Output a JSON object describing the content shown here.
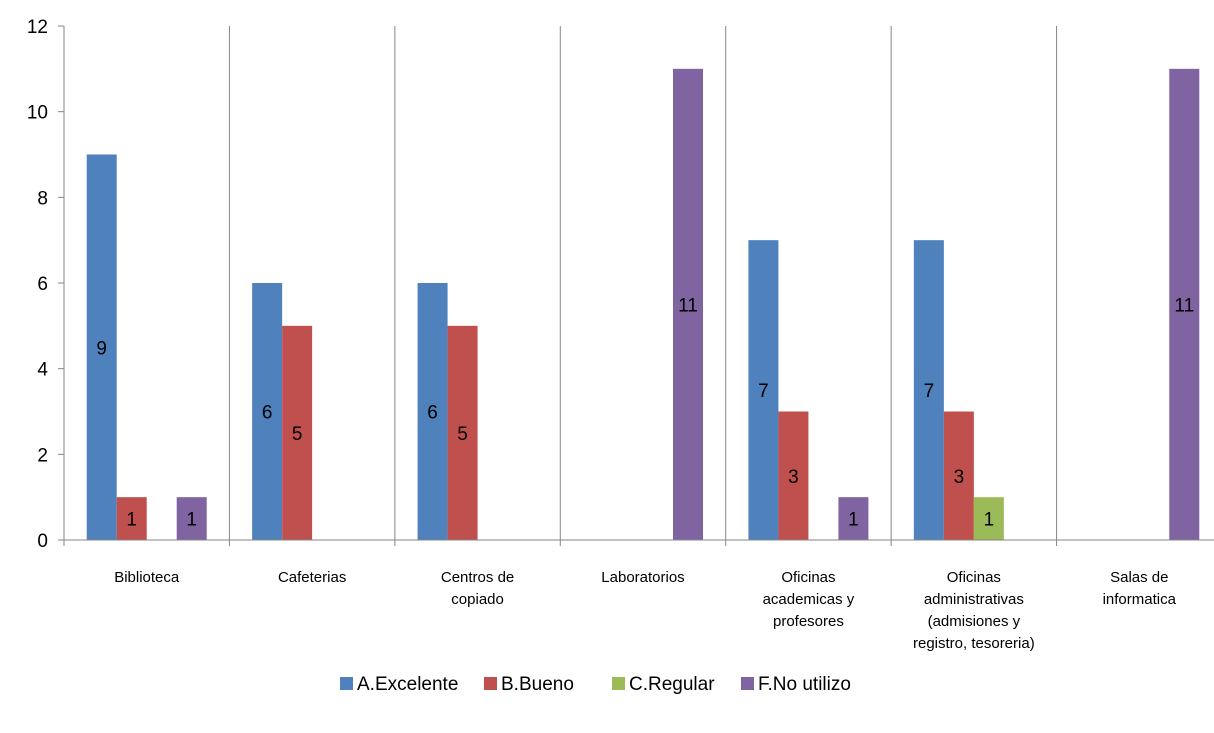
{
  "chart_data": {
    "type": "bar",
    "categories": [
      [
        "Biblioteca"
      ],
      [
        "Cafeterias"
      ],
      [
        "Centros de",
        "copiado"
      ],
      [
        "Laboratorios"
      ],
      [
        "Oficinas",
        "academicas y",
        "profesores"
      ],
      [
        "Oficinas",
        "administrativas",
        "(admisiones y",
        "registro, tesoreria)"
      ],
      [
        "Salas de",
        "informatica"
      ]
    ],
    "series": [
      {
        "name": "A.Excelente",
        "color": "#4F81BD",
        "values": [
          9,
          6,
          6,
          null,
          7,
          7,
          null
        ]
      },
      {
        "name": "B.Bueno",
        "color": "#C0504D",
        "values": [
          1,
          5,
          5,
          null,
          3,
          3,
          null
        ]
      },
      {
        "name": "C.Regular",
        "color": "#9BBB59",
        "values": [
          null,
          null,
          null,
          null,
          null,
          1,
          null
        ]
      },
      {
        "name": "F.No utilizo",
        "color": "#8064A2",
        "values": [
          1,
          null,
          null,
          11,
          1,
          null,
          11
        ]
      }
    ],
    "ylim": [
      0,
      12
    ],
    "yticks": [
      0,
      2,
      4,
      6,
      8,
      10,
      12
    ],
    "grid": "vertical-category-separators",
    "legend": "bottom",
    "data_labels": true
  }
}
